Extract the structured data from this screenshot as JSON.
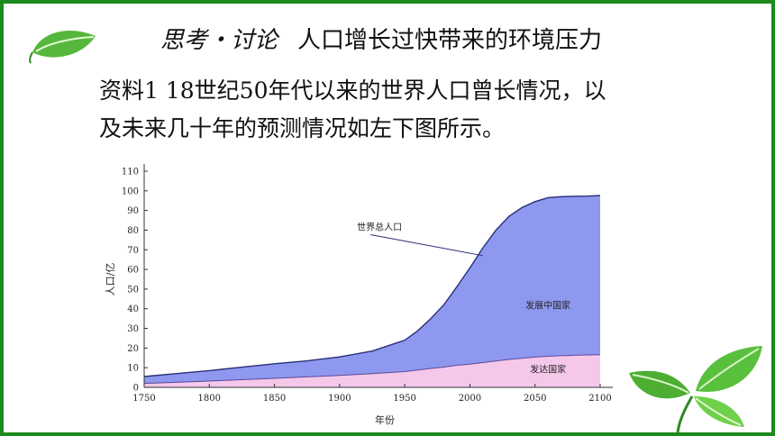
{
  "slide": {
    "title_topic": "思考・讨论",
    "title_main": "人口增长过快带来的环境压力",
    "body_line1": "资料1 18世纪50年代以来的世界人口曾长情况，以",
    "body_line2": "及未来几十年的预测情况如左下图所示。",
    "leaf_icon": "leaf-icon",
    "leaves_icon": "leaves-icon"
  },
  "chart_data": {
    "type": "area",
    "xlabel": "年份",
    "ylabel": "人口/亿",
    "xlim": [
      1750,
      2100
    ],
    "ylim": [
      0,
      110
    ],
    "x_ticks": [
      1750,
      1800,
      1850,
      1900,
      1950,
      2000,
      2050,
      2100
    ],
    "y_ticks": [
      0,
      10,
      20,
      30,
      40,
      50,
      60,
      70,
      80,
      90,
      100,
      110
    ],
    "x": [
      1750,
      1775,
      1800,
      1825,
      1850,
      1875,
      1900,
      1925,
      1950,
      1960,
      1970,
      1980,
      1990,
      2000,
      2010,
      2020,
      2030,
      2040,
      2050,
      2060,
      2070,
      2080,
      2090,
      2100
    ],
    "series": [
      {
        "name": "发达国家",
        "color": "#f5c8ea",
        "values": [
          2,
          2.6,
          3.2,
          3.9,
          4.6,
          5.3,
          6.1,
          7,
          8,
          8.8,
          9.6,
          10.3,
          11.2,
          11.8,
          12.6,
          13.4,
          14.2,
          14.8,
          15.4,
          15.8,
          16.1,
          16.3,
          16.5,
          16.6
        ]
      },
      {
        "name": "发展中国家",
        "color": "#8e98ee",
        "values": [
          3.5,
          4.4,
          5.3,
          6.4,
          7.4,
          8.2,
          9.4,
          11.5,
          16,
          20,
          25.4,
          31.7,
          40,
          49,
          58.4,
          66.6,
          72.8,
          76.7,
          79.1,
          80.7,
          80.9,
          80.9,
          80.8,
          81
        ]
      }
    ],
    "total_label": "世界总人口",
    "area_labels": [
      "发展中国家",
      "发达国家"
    ],
    "colors": {
      "axis": "#333333",
      "total_line": "#2a2f7a",
      "text": "#222222"
    }
  }
}
